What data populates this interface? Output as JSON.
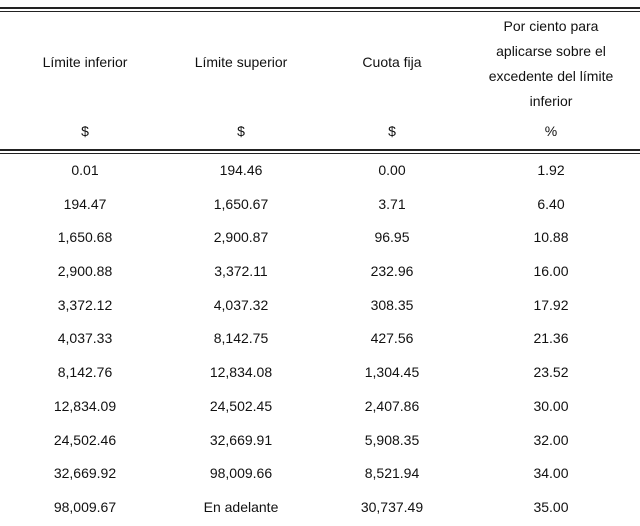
{
  "headers": {
    "lower": "Límite inferior",
    "upper": "Límite superior",
    "fixed": "Cuota fija",
    "percent_lines": [
      "Por ciento para",
      "aplicarse sobre el",
      "excedente del límite",
      "inferior"
    ],
    "unit_lower": "$",
    "unit_upper": "$",
    "unit_fixed": "$",
    "unit_percent": "%"
  },
  "rows": [
    [
      "0.01",
      "194.46",
      "0.00",
      "1.92"
    ],
    [
      "194.47",
      "1,650.67",
      "3.71",
      "6.40"
    ],
    [
      "1,650.68",
      "2,900.87",
      "96.95",
      "10.88"
    ],
    [
      "2,900.88",
      "3,372.11",
      "232.96",
      "16.00"
    ],
    [
      "3,372.12",
      "4,037.32",
      "308.35",
      "17.92"
    ],
    [
      "4,037.33",
      "8,142.75",
      "427.56",
      "21.36"
    ],
    [
      "8,142.76",
      "12,834.08",
      "1,304.45",
      "23.52"
    ],
    [
      "12,834.09",
      "24,502.45",
      "2,407.86",
      "30.00"
    ],
    [
      "24,502.46",
      "32,669.91",
      "5,908.35",
      "32.00"
    ],
    [
      "32,669.92",
      "98,009.66",
      "8,521.94",
      "34.00"
    ],
    [
      "98,009.67",
      "En adelante",
      "30,737.49",
      "35.00"
    ]
  ]
}
